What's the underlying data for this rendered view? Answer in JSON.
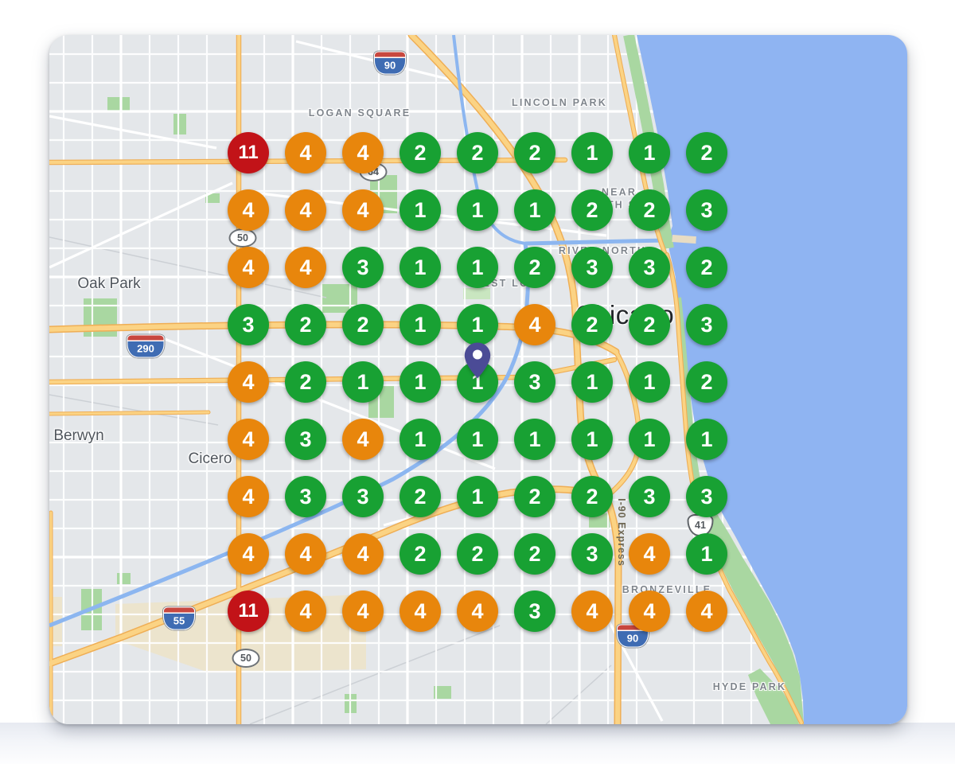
{
  "map": {
    "markers": {
      "rows": 9,
      "cols": 9,
      "values": [
        [
          11,
          4,
          4,
          2,
          2,
          2,
          1,
          1,
          2
        ],
        [
          4,
          4,
          4,
          1,
          1,
          1,
          2,
          2,
          3
        ],
        [
          4,
          4,
          3,
          1,
          1,
          2,
          3,
          3,
          2
        ],
        [
          3,
          2,
          2,
          1,
          1,
          4,
          2,
          2,
          3
        ],
        [
          4,
          2,
          1,
          1,
          1,
          3,
          1,
          1,
          2
        ],
        [
          4,
          3,
          4,
          1,
          1,
          1,
          1,
          1,
          1
        ],
        [
          4,
          3,
          3,
          2,
          1,
          2,
          2,
          3,
          3
        ],
        [
          4,
          4,
          4,
          2,
          2,
          2,
          3,
          4,
          1
        ],
        [
          11,
          4,
          4,
          4,
          4,
          3,
          4,
          4,
          4
        ]
      ],
      "thresholds": {
        "low_max": 3,
        "mid_max": 10
      },
      "colors": {
        "low": "#18a133",
        "mid": "#e8860c",
        "high": "#c21318"
      }
    },
    "pin": {
      "color": "#4b4b96"
    },
    "neighborhood_labels": [
      {
        "text": "LOGAN SQUARE"
      },
      {
        "text": "LINCOLN PARK"
      },
      {
        "text": "NEAR NORTH SIDE"
      },
      {
        "text": "RIVER NORTH"
      },
      {
        "text": "WEST LOOP"
      },
      {
        "text": "BRONZEVILLE"
      },
      {
        "text": "HYDE PARK"
      }
    ],
    "city_labels": [
      {
        "text": "Oak Park"
      },
      {
        "text": "Berwyn"
      },
      {
        "text": "Cicero"
      },
      {
        "text": "Chicago"
      }
    ],
    "road_shields": [
      {
        "type": "interstate",
        "text": "90"
      },
      {
        "type": "state",
        "text": "64"
      },
      {
        "type": "state",
        "text": "50"
      },
      {
        "type": "interstate",
        "text": "290"
      },
      {
        "type": "interstate",
        "text": "55"
      },
      {
        "type": "state",
        "text": "50"
      },
      {
        "type": "us",
        "text": "41"
      },
      {
        "type": "interstate",
        "text": "90"
      }
    ],
    "road_labels": [
      {
        "text": "I-90 Express"
      }
    ],
    "water_color": "#8fb4f2",
    "park_color": "#a9d7a1",
    "road_color": "#fbd384"
  }
}
